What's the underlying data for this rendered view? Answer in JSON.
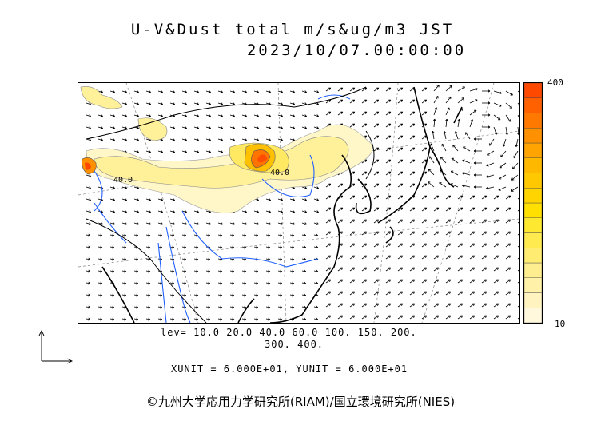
{
  "title_line1": "U-V&Dust total m/s&ug/m3 JST",
  "title_line2": "2023/10/07.00:00:00",
  "colorbar": {
    "max_label": "400",
    "min_label": "10",
    "colors": [
      "#fff8dc",
      "#fff4c0",
      "#fff1a8",
      "#ffee90",
      "#ffec70",
      "#ffea50",
      "#ffe830",
      "#ffe000",
      "#ffd400",
      "#ffc800",
      "#ffb800",
      "#ffa400",
      "#ff9000",
      "#ff7800",
      "#ff6000",
      "#ff4800"
    ]
  },
  "levels_line1": "lev= 10.0 20.0 40.0 60.0 100. 150. 200.",
  "levels_line2": "300. 400.",
  "units": "XUNIT = 6.000E+01, YUNIT = 6.000E+01",
  "contour_labels": [
    "40.0",
    "40.0"
  ],
  "copyright": "©九州大学応用力学研究所(RIAM)/国立環境研究所(NIES)"
}
